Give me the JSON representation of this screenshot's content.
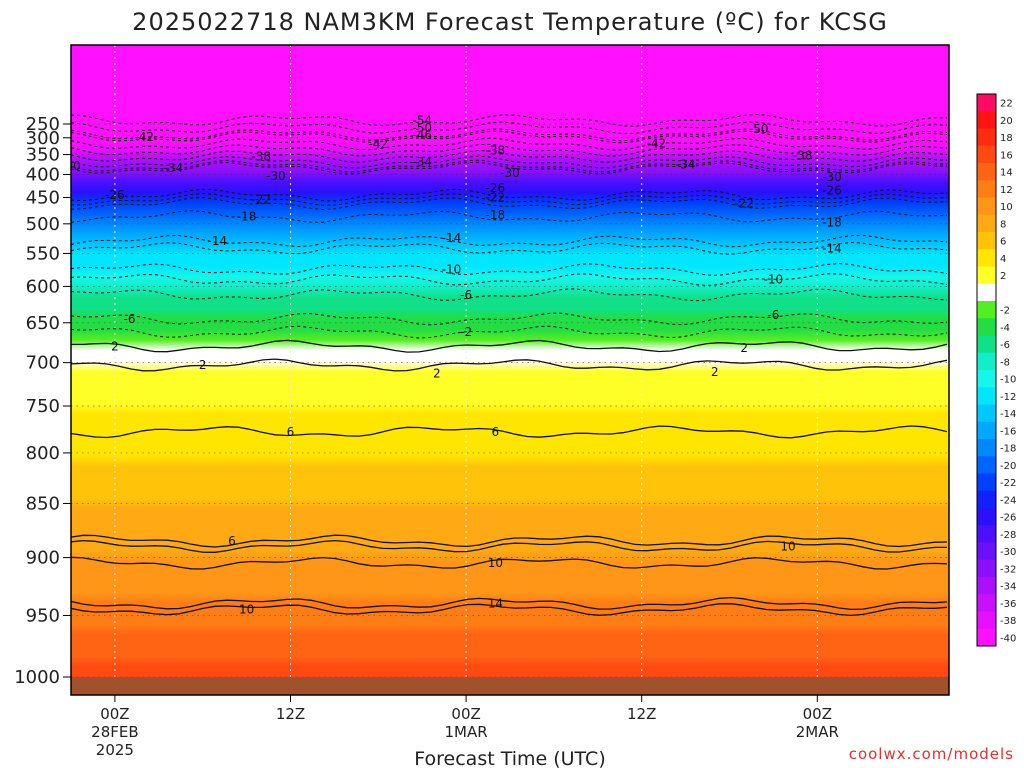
{
  "chart_data": {
    "type": "heatmap",
    "title": "2025022718 NAM3KM Forecast Temperature (ºC) for KCSG",
    "xlabel": "Forecast Time (UTC)",
    "ylabel": "",
    "credit": "coolwx.com/models",
    "x_range_hours": [
      -3,
      57
    ],
    "y_range_hpa": [
      1000,
      200
    ],
    "y_scale": "log",
    "y_ticks": [
      250,
      300,
      350,
      400,
      450,
      500,
      550,
      600,
      650,
      700,
      750,
      800,
      850,
      900,
      950,
      1000
    ],
    "x_ticks": [
      {
        "hour": 0,
        "lines": [
          "00Z",
          "28FEB",
          "2025"
        ]
      },
      {
        "hour": 12,
        "lines": [
          "12Z"
        ]
      },
      {
        "hour": 24,
        "lines": [
          "00Z",
          "1MAR"
        ]
      },
      {
        "hour": 36,
        "lines": [
          "12Z"
        ]
      },
      {
        "hour": 48,
        "lines": [
          "00Z",
          "2MAR"
        ]
      }
    ],
    "grid": "dotted",
    "legend": "right",
    "colorbar": [
      {
        "label": "22",
        "color": "#ff0a64"
      },
      {
        "label": "20",
        "color": "#ff1414"
      },
      {
        "label": "18",
        "color": "#ff2d0f"
      },
      {
        "label": "16",
        "color": "#ff4a12"
      },
      {
        "label": "14",
        "color": "#ff6414"
      },
      {
        "label": "12",
        "color": "#ff7d14"
      },
      {
        "label": "10",
        "color": "#ff9618"
      },
      {
        "label": "8",
        "color": "#ffaa14"
      },
      {
        "label": "6",
        "color": "#ffc30a"
      },
      {
        "label": "4",
        "color": "#ffe600"
      },
      {
        "label": "2",
        "color": "#ffff28"
      },
      {
        "label": "",
        "color": "#ffffff"
      },
      {
        "label": "-2",
        "color": "#55ee22"
      },
      {
        "label": "-4",
        "color": "#22dd44"
      },
      {
        "label": "-6",
        "color": "#10e088"
      },
      {
        "label": "-8",
        "color": "#12eec8"
      },
      {
        "label": "-10",
        "color": "#16f6ea"
      },
      {
        "label": "-12",
        "color": "#00e6ff"
      },
      {
        "label": "-14",
        "color": "#00c8ff"
      },
      {
        "label": "-16",
        "color": "#00a8ff"
      },
      {
        "label": "-18",
        "color": "#0088ff"
      },
      {
        "label": "-20",
        "color": "#0064ff"
      },
      {
        "label": "-22",
        "color": "#0040ff"
      },
      {
        "label": "-24",
        "color": "#1020ff"
      },
      {
        "label": "-26",
        "color": "#2a10ff"
      },
      {
        "label": "-28",
        "color": "#4a10ff"
      },
      {
        "label": "-30",
        "color": "#6a10ff"
      },
      {
        "label": "-32",
        "color": "#8a10ff"
      },
      {
        "label": "-34",
        "color": "#aa10ff"
      },
      {
        "label": "-36",
        "color": "#c810ff"
      },
      {
        "label": "-38",
        "color": "#e410ff"
      },
      {
        "label": "-40",
        "color": "#ff10ff"
      }
    ],
    "profile": {
      "levels_hpa": [
        1000,
        950,
        900,
        850,
        800,
        750,
        700,
        650,
        600,
        550,
        500,
        450,
        400,
        350,
        300,
        250
      ],
      "temps_c": [
        16,
        12,
        9,
        7,
        4.5,
        3,
        1,
        -4,
        -8,
        -13,
        -18,
        -24,
        -30,
        -37,
        -44,
        -52
      ]
    },
    "contour_labels": [
      {
        "text": "-54",
        "hour": 21,
        "hpa": 235
      },
      {
        "text": "-50",
        "hour": 21,
        "hpa": 265
      },
      {
        "text": "-50",
        "hour": 44,
        "hpa": 270
      },
      {
        "text": "-46",
        "hour": 21,
        "hpa": 290
      },
      {
        "text": "-42",
        "hour": 2,
        "hpa": 297
      },
      {
        "text": "-42",
        "hour": 18,
        "hpa": 320
      },
      {
        "text": "-42",
        "hour": 37,
        "hpa": 318
      },
      {
        "text": "-38",
        "hour": 10,
        "hpa": 355
      },
      {
        "text": "-38",
        "hour": 26,
        "hpa": 338
      },
      {
        "text": "-38",
        "hour": 47,
        "hpa": 352
      },
      {
        "text": "-34",
        "hour": 21,
        "hpa": 370
      },
      {
        "text": "-34",
        "hour": 4,
        "hpa": 385
      },
      {
        "text": "-34",
        "hour": 39,
        "hpa": 376
      },
      {
        "text": "-30",
        "hour": -3,
        "hpa": 380
      },
      {
        "text": "-30",
        "hour": 11,
        "hpa": 403
      },
      {
        "text": "-30",
        "hour": 27,
        "hpa": 397
      },
      {
        "text": "-30",
        "hour": 49,
        "hpa": 406
      },
      {
        "text": "-26",
        "hour": 0,
        "hpa": 445
      },
      {
        "text": "-26",
        "hour": 26,
        "hpa": 430
      },
      {
        "text": "-26",
        "hour": 49,
        "hpa": 435
      },
      {
        "text": "-22",
        "hour": 10,
        "hpa": 454
      },
      {
        "text": "-22",
        "hour": 26,
        "hpa": 450
      },
      {
        "text": "-22",
        "hour": 43,
        "hpa": 462
      },
      {
        "text": "-18",
        "hour": 9,
        "hpa": 487
      },
      {
        "text": "-18",
        "hour": 26,
        "hpa": 484
      },
      {
        "text": "-18",
        "hour": 49,
        "hpa": 498
      },
      {
        "text": "-14",
        "hour": 7,
        "hpa": 530
      },
      {
        "text": "-14",
        "hour": 23,
        "hpa": 525
      },
      {
        "text": "-14",
        "hour": 49,
        "hpa": 542
      },
      {
        "text": "-10",
        "hour": 23,
        "hpa": 575
      },
      {
        "text": "-10",
        "hour": 45,
        "hpa": 590
      },
      {
        "text": "-6",
        "hour": 1,
        "hpa": 645
      },
      {
        "text": "-6",
        "hour": 24,
        "hpa": 612
      },
      {
        "text": "-6",
        "hour": 45,
        "hpa": 640
      },
      {
        "text": "2",
        "hour": 0,
        "hpa": 680
      },
      {
        "text": "-2",
        "hour": 24,
        "hpa": 662
      },
      {
        "text": "2",
        "hour": 43,
        "hpa": 682
      },
      {
        "text": "2",
        "hour": 6,
        "hpa": 703
      },
      {
        "text": "2",
        "hour": 22,
        "hpa": 713
      },
      {
        "text": "2",
        "hour": 41,
        "hpa": 711
      },
      {
        "text": "6",
        "hour": 12,
        "hpa": 778
      },
      {
        "text": "6",
        "hour": 26,
        "hpa": 778
      },
      {
        "text": "6",
        "hour": 8,
        "hpa": 885
      },
      {
        "text": "10",
        "hour": 9,
        "hpa": 945
      },
      {
        "text": "10",
        "hour": 26,
        "hpa": 905
      },
      {
        "text": "10",
        "hour": 46,
        "hpa": 890
      },
      {
        "text": "14",
        "hour": 26,
        "hpa": 940
      }
    ]
  }
}
